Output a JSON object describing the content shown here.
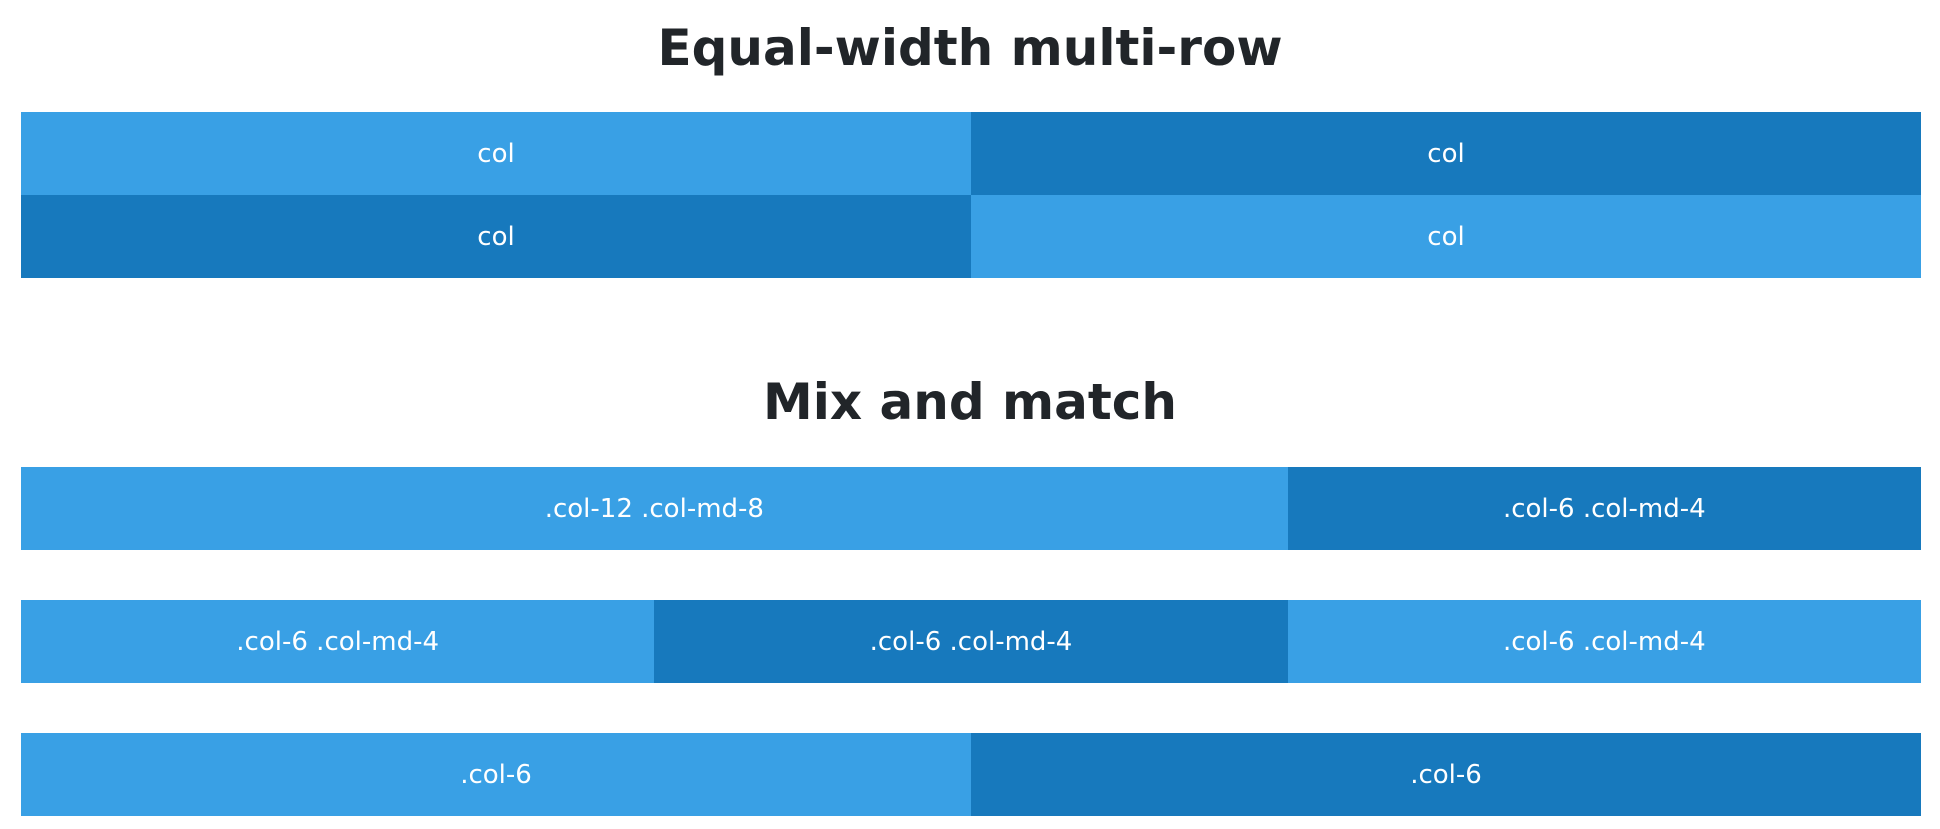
{
  "section1": {
    "title": "Equal-width multi-row",
    "rows": [
      [
        "col",
        "col"
      ],
      [
        "col",
        "col"
      ]
    ]
  },
  "section2": {
    "title": "Mix and match",
    "rows": [
      [
        ".col-12 .col-md-8",
        ".col-6 .col-md-4"
      ],
      [
        ".col-6 .col-md-4",
        ".col-6 .col-md-4",
        ".col-6 .col-md-4"
      ],
      [
        ".col-6",
        ".col-6"
      ]
    ]
  },
  "colors": {
    "light": "#39a0e5",
    "dark": "#1779bd",
    "heading": "#212529",
    "cell_text": "#ffffff"
  }
}
